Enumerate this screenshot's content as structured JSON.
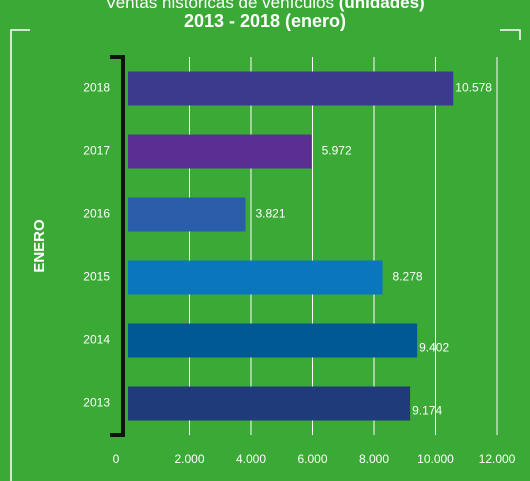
{
  "chart_data": {
    "type": "bar",
    "orientation": "horizontal",
    "title": "Ventas históricas de vehículos",
    "title_unit": "(unidades)",
    "subtitle": "2013 - 2018 (enero)",
    "y_label": "ENERO",
    "categories": [
      "2013",
      "2014",
      "2015",
      "2016",
      "2017",
      "2018"
    ],
    "values": [
      9174,
      9402,
      8278,
      3821,
      5972,
      10578
    ],
    "value_labels": [
      "9.174",
      "9.402",
      "8.278",
      "3.821",
      "5.972",
      "10.578"
    ],
    "colors": [
      "#1f3b7a",
      "#005894",
      "#0a76bd",
      "#2a5daa",
      "#5a2e92",
      "#3b3a8d"
    ],
    "xlim": [
      0,
      12000
    ],
    "xticks": [
      0,
      {
        "value": 2000,
        "label": "2.000"
      },
      {
        "value": 4000,
        "label": "4.000"
      },
      {
        "value": 6000,
        "label": "6.000"
      },
      {
        "value": 8000,
        "label": "8.000"
      },
      {
        "value": 10000,
        "label": "10.000"
      },
      {
        "value": 12000,
        "label": "12.000"
      }
    ],
    "grid": true
  }
}
